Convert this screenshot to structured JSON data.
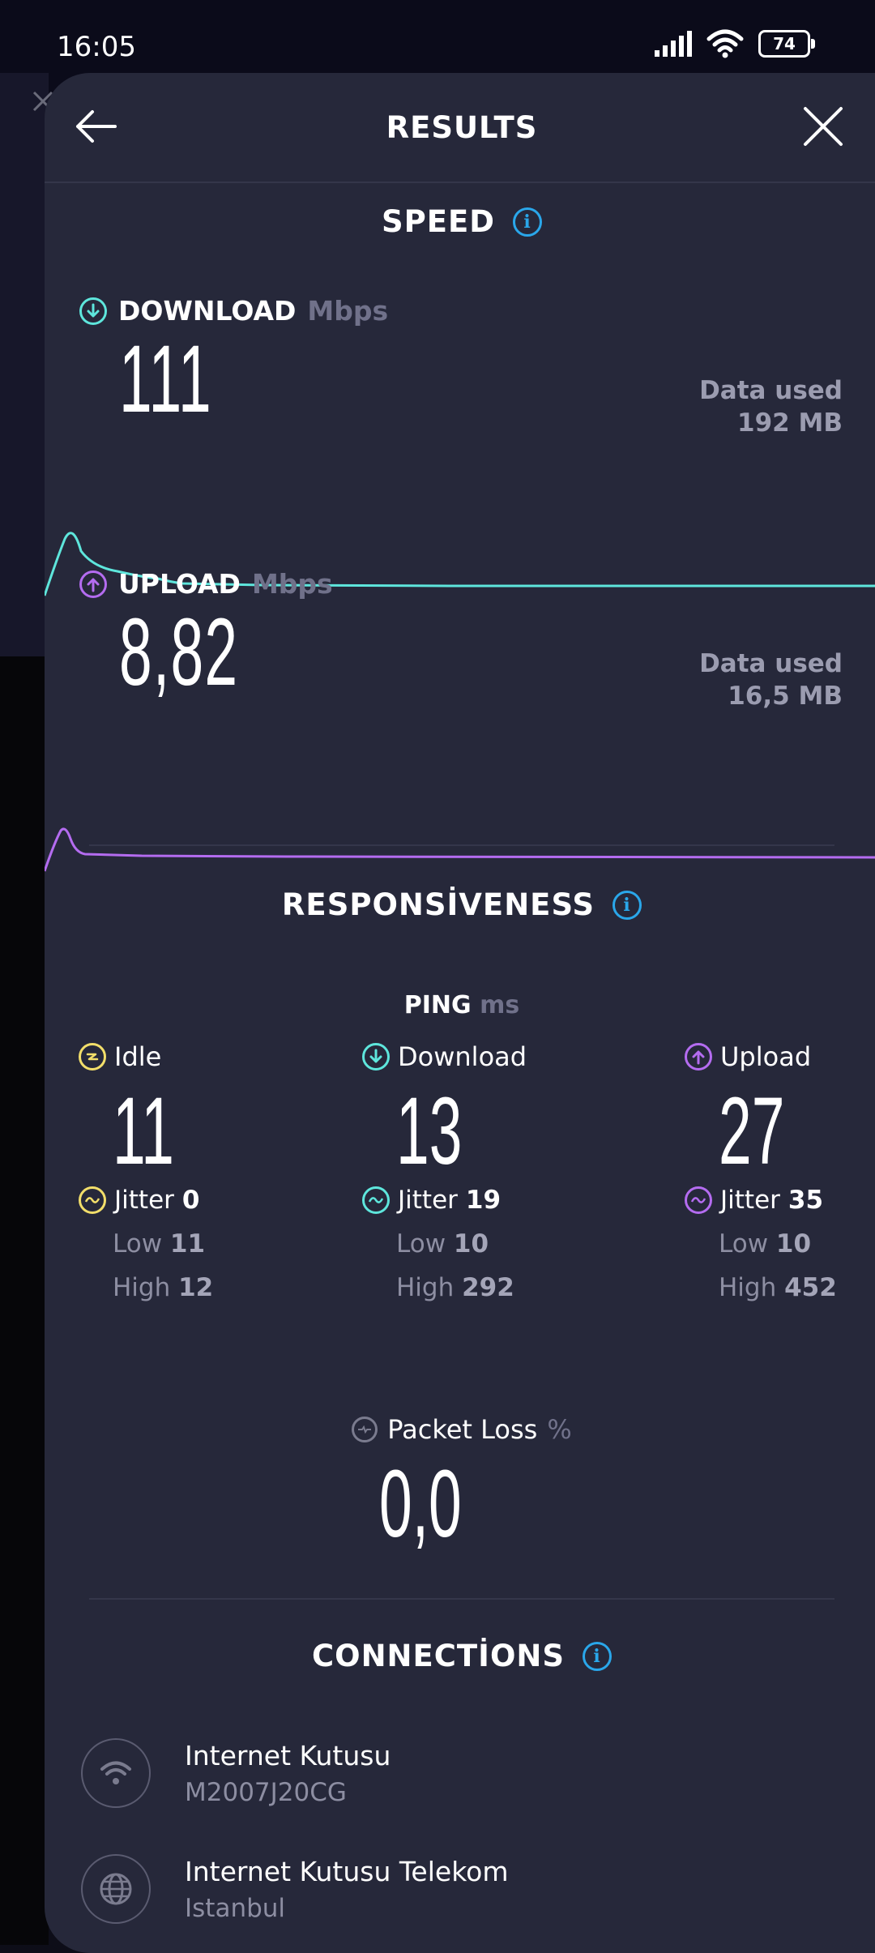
{
  "status_bar": {
    "time": "16:05",
    "battery": "74"
  },
  "header": {
    "title": "RESULTS",
    "back_icon": "arrow-left-icon",
    "close_icon": "close-icon"
  },
  "speed": {
    "title": "SPEED",
    "download": {
      "label": "DOWNLOAD",
      "unit": "Mbps",
      "value": "111",
      "data_used_label": "Data used",
      "data_used_value": "192 MB",
      "color": "#5ee6dc"
    },
    "upload": {
      "label": "UPLOAD",
      "unit": "Mbps",
      "value": "8,82",
      "data_used_label": "Data used",
      "data_used_value": "16,5 MB",
      "color": "#b46cf0"
    }
  },
  "responsiveness": {
    "title": "RESPONSİVENESS",
    "ping": {
      "label": "PING",
      "unit": "ms"
    },
    "columns": [
      {
        "label": "Idle",
        "value": "11",
        "jitter_label": "Jitter",
        "jitter": "0",
        "low_label": "Low",
        "low": "11",
        "high_label": "High",
        "high": "12",
        "color": "#f2de6a"
      },
      {
        "label": "Download",
        "value": "13",
        "jitter_label": "Jitter",
        "jitter": "19",
        "low_label": "Low",
        "low": "10",
        "high_label": "High",
        "high": "292",
        "color": "#5ee6dc"
      },
      {
        "label": "Upload",
        "value": "27",
        "jitter_label": "Jitter",
        "jitter": "35",
        "low_label": "Low",
        "low": "10",
        "high_label": "High",
        "high": "452",
        "color": "#b46cf0"
      }
    ],
    "packet_loss": {
      "label": "Packet Loss",
      "unit": "%",
      "value": "0,0"
    }
  },
  "connections": {
    "title": "CONNECTİONS",
    "items": [
      {
        "name": "Internet Kutusu",
        "detail": "M2007J20CG",
        "icon": "wifi-icon"
      },
      {
        "name": "Internet Kutusu Telekom",
        "detail": "Istanbul",
        "icon": "globe-icon"
      }
    ]
  }
}
